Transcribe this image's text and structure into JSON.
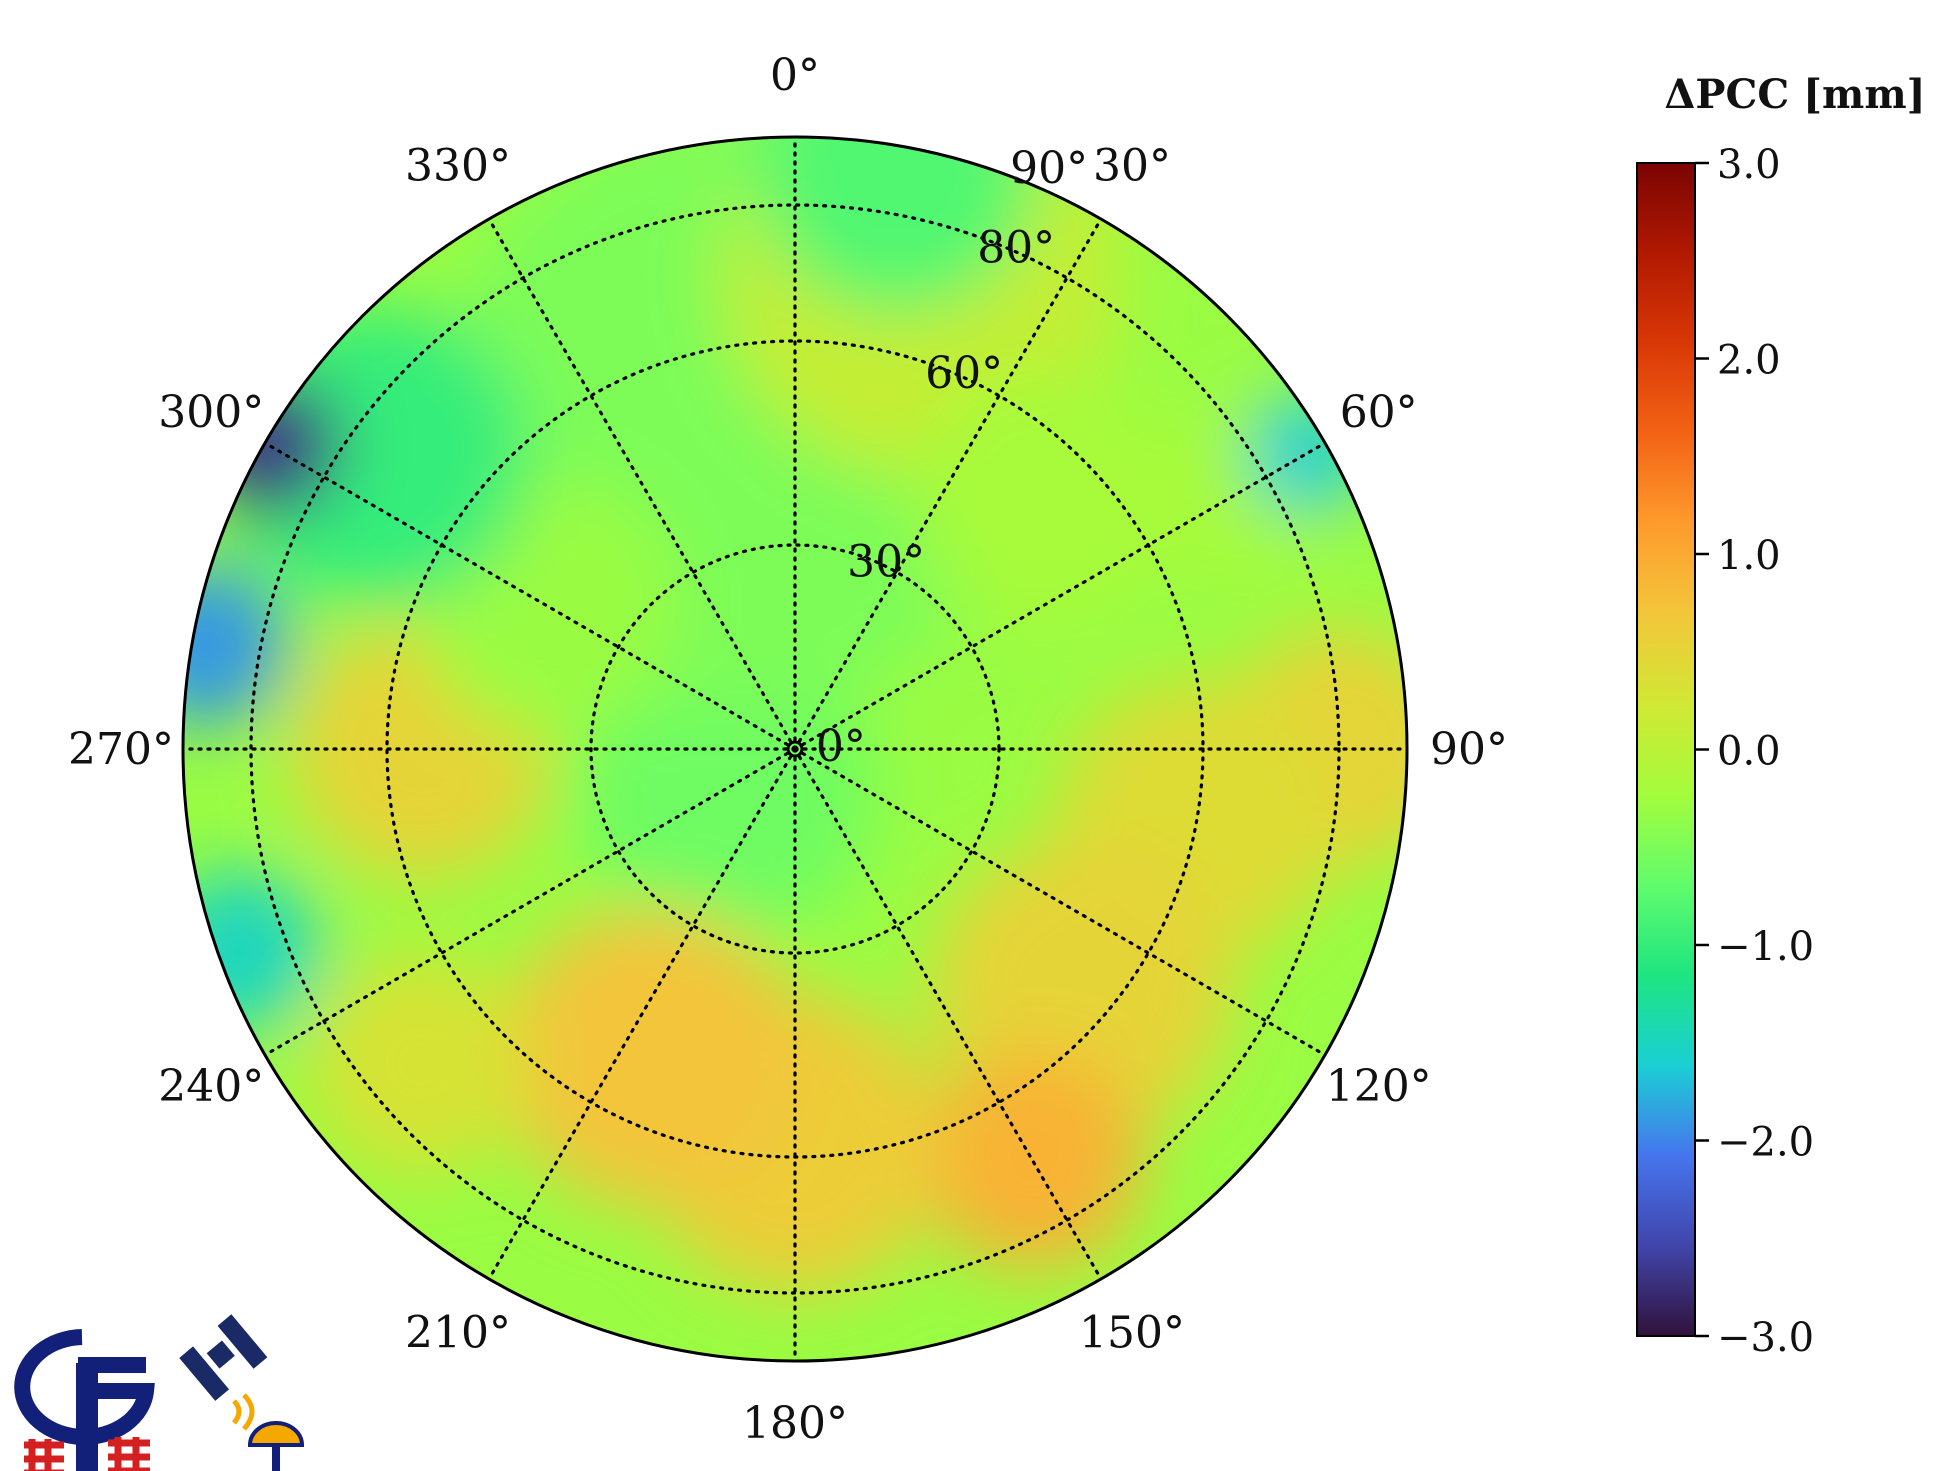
{
  "chart_data": {
    "type": "heatmap",
    "projection": "polar",
    "colorbar": {
      "title": "ΔPCC [mm]",
      "min": -3.0,
      "max": 3.0,
      "ticks": [
        3.0,
        2.0,
        1.0,
        0.0,
        -1.0,
        -2.0,
        -3.0
      ],
      "tick_labels": [
        "3.0",
        "2.0",
        "1.0",
        "0.0",
        "−1.0",
        "−2.0",
        "−3.0"
      ],
      "colormap": [
        "#30123b",
        "#4145ab",
        "#4675ed",
        "#1bcfd4",
        "#1ee581",
        "#61fc6c",
        "#a4fc3c",
        "#d1e834",
        "#f3c63a",
        "#fe9b2d",
        "#f36315",
        "#d93806",
        "#b11901",
        "#7a0403"
      ]
    },
    "azimuth_labels": [
      {
        "deg": 0,
        "text": "0°"
      },
      {
        "deg": 30,
        "text": "30°"
      },
      {
        "deg": 60,
        "text": "60°"
      },
      {
        "deg": 90,
        "text": "90°"
      },
      {
        "deg": 120,
        "text": "120°"
      },
      {
        "deg": 150,
        "text": "150°"
      },
      {
        "deg": 180,
        "text": "180°"
      },
      {
        "deg": 210,
        "text": "210°"
      },
      {
        "deg": 240,
        "text": "240°"
      },
      {
        "deg": 270,
        "text": "270°"
      },
      {
        "deg": 300,
        "text": "300°"
      },
      {
        "deg": 330,
        "text": "330°"
      }
    ],
    "zenith_rings": [
      30,
      60,
      80
    ],
    "zenith_max": 90,
    "zenith_labels": [
      {
        "deg": 0,
        "text": "0°"
      },
      {
        "deg": 30,
        "text": "30°"
      },
      {
        "deg": 60,
        "text": "60°"
      },
      {
        "deg": 80,
        "text": "80°"
      },
      {
        "deg": 90,
        "text": "90°"
      }
    ],
    "grid": true,
    "regions": [
      {
        "az": 0,
        "zen": 0,
        "r": 40,
        "value": -0.6
      },
      {
        "az": 240,
        "zen": 12,
        "r": 150,
        "value": -0.6
      },
      {
        "az": 350,
        "zen": 50,
        "r": 300,
        "value": -0.5
      },
      {
        "az": 15,
        "zen": 72,
        "r": 200,
        "value": 0.1
      },
      {
        "az": 45,
        "zen": 52,
        "r": 130,
        "value": -0.2
      },
      {
        "az": 60,
        "zen": 75,
        "r": 90,
        "value": -0.2
      },
      {
        "az": 90,
        "zen": 80,
        "r": 120,
        "value": 0.5
      },
      {
        "az": 100,
        "zen": 60,
        "r": 140,
        "value": 0.4
      },
      {
        "az": 130,
        "zen": 55,
        "r": 150,
        "value": 0.5
      },
      {
        "az": 150,
        "zen": 70,
        "r": 110,
        "value": 0.9
      },
      {
        "az": 180,
        "zen": 58,
        "r": 150,
        "value": 0.6
      },
      {
        "az": 205,
        "zen": 50,
        "r": 150,
        "value": 0.7
      },
      {
        "az": 230,
        "zen": 72,
        "r": 110,
        "value": 0.3
      },
      {
        "az": 270,
        "zen": 55,
        "r": 130,
        "value": 0.5
      },
      {
        "az": 300,
        "zen": 42,
        "r": 130,
        "value": -0.3
      },
      {
        "az": 305,
        "zen": 75,
        "r": 150,
        "value": -1.0
      },
      {
        "az": 10,
        "zen": 86,
        "r": 140,
        "value": -0.8
      },
      {
        "az": 60,
        "zen": 87,
        "r": 60,
        "value": -1.6
      },
      {
        "az": 300,
        "zen": 89,
        "r": 70,
        "value": -2.7
      },
      {
        "az": 280,
        "zen": 88,
        "r": 80,
        "value": -1.9
      },
      {
        "az": 250,
        "zen": 87,
        "r": 80,
        "value": -1.5
      }
    ]
  },
  "logo": {
    "left_text": "",
    "colors": [
      "#12207a",
      "#d42020",
      "#f5a800",
      "#1a1a1a"
    ]
  }
}
